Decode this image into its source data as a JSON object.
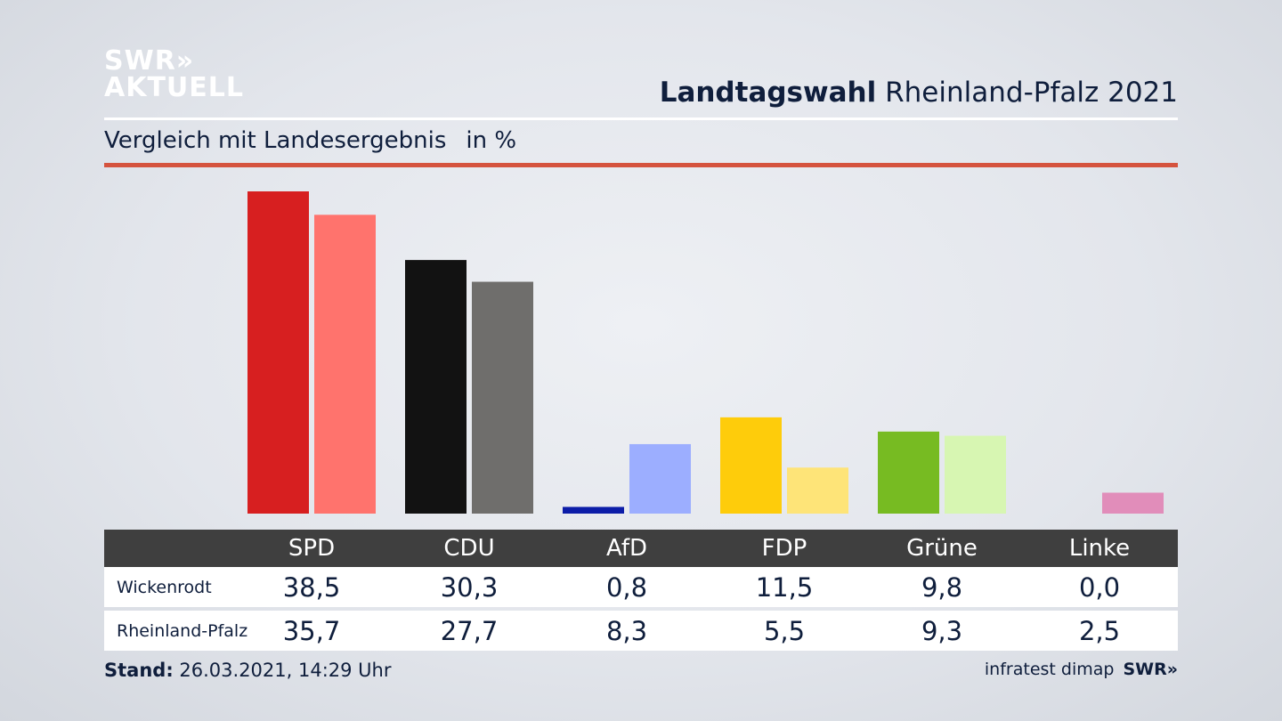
{
  "logo": {
    "line1": "SWR»",
    "line2": "AKTUELL"
  },
  "header": {
    "title_bold": "Landtagswahl",
    "title_rest": " Rheinland-Pfalz 2021",
    "subtitle": "Vergleich mit Landesergebnis",
    "unit": "in %"
  },
  "chart_data": {
    "type": "bar",
    "categories": [
      "SPD",
      "CDU",
      "AfD",
      "FDP",
      "Grüne",
      "Linke"
    ],
    "series": [
      {
        "name": "Wickenrodt",
        "values": [
          38.5,
          30.3,
          0.8,
          11.5,
          9.8,
          0.0
        ],
        "display": [
          "38,5",
          "30,3",
          "0,8",
          "11,5",
          "9,8",
          "0,0"
        ],
        "colors": [
          "#d71f20",
          "#121212",
          "#0c1da8",
          "#fecc0b",
          "#77bb22",
          "#c0397a"
        ]
      },
      {
        "name": "Rheinland-Pfalz",
        "values": [
          35.7,
          27.7,
          8.3,
          5.5,
          9.3,
          2.5
        ],
        "display": [
          "35,7",
          "27,7",
          "8,3",
          "5,5",
          "9,3",
          "2,5"
        ],
        "colors": [
          "#ff736d",
          "#6f6e6c",
          "#9caeff",
          "#fee478",
          "#d7f6b2",
          "#e18dba"
        ]
      }
    ],
    "ylim": [
      0,
      38.5
    ],
    "grid": false,
    "legend": "table-below"
  },
  "footer": {
    "stand_label": "Stand:",
    "stand_value": " 26.03.2021, 14:29 Uhr",
    "source": "infratest dimap",
    "brand": "SWR»"
  }
}
